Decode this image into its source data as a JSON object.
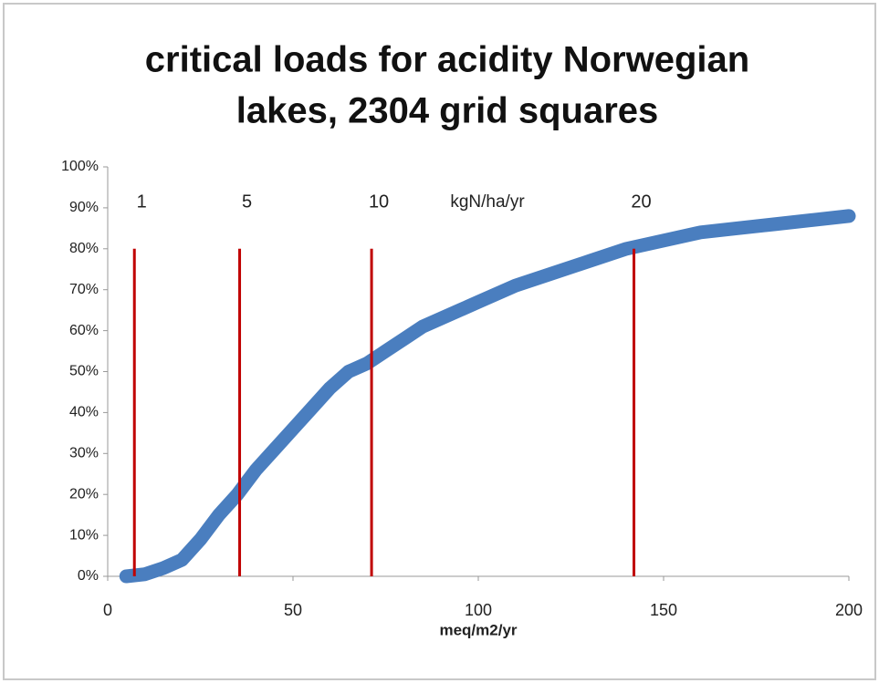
{
  "chart_data": {
    "type": "line",
    "title": [
      "critical loads for acidity Norwegian",
      "lakes, 2304 grid squares"
    ],
    "x_label": "meq/m2/yr",
    "annotation": "kgN/ha/yr",
    "series": [
      {
        "color": "#4a7ebf",
        "x": [
          5,
          10,
          15,
          20,
          25,
          30,
          35,
          40,
          45,
          50,
          55,
          60,
          65,
          70,
          75,
          80,
          85,
          90,
          95,
          100,
          110,
          120,
          130,
          140,
          150,
          160,
          170,
          180,
          190,
          200
        ],
        "values": [
          0,
          0.5,
          2,
          4,
          9,
          15,
          20,
          26,
          31,
          36,
          41,
          46,
          50,
          52,
          55,
          58,
          61,
          63,
          65,
          67,
          71,
          74,
          77,
          80,
          82,
          84,
          85,
          86,
          87,
          88
        ]
      }
    ],
    "reference_lines": [
      {
        "x": 7.2,
        "top": 80,
        "label": "1"
      },
      {
        "x": 35.6,
        "top": 80,
        "label": "5"
      },
      {
        "x": 71.2,
        "top": 80,
        "label": "10"
      },
      {
        "x": 142,
        "top": 80,
        "label": "20"
      }
    ],
    "reference_color": "#c00000",
    "xlim": [
      0,
      200
    ],
    "xticks": [
      0,
      50,
      100,
      150,
      200
    ],
    "ylim": [
      0,
      100
    ],
    "yticks": [
      {
        "value": 0,
        "label": "0%"
      },
      {
        "value": 10,
        "label": "10%"
      },
      {
        "value": 20,
        "label": "20%"
      },
      {
        "value": 30,
        "label": "30%"
      },
      {
        "value": 40,
        "label": "40%"
      },
      {
        "value": 50,
        "label": "50%"
      },
      {
        "value": 60,
        "label": "60%"
      },
      {
        "value": 70,
        "label": "70%"
      },
      {
        "value": 80,
        "label": "80%"
      },
      {
        "value": 90,
        "label": "90%"
      },
      {
        "value": 100,
        "label": "100%"
      }
    ],
    "grid": false
  }
}
